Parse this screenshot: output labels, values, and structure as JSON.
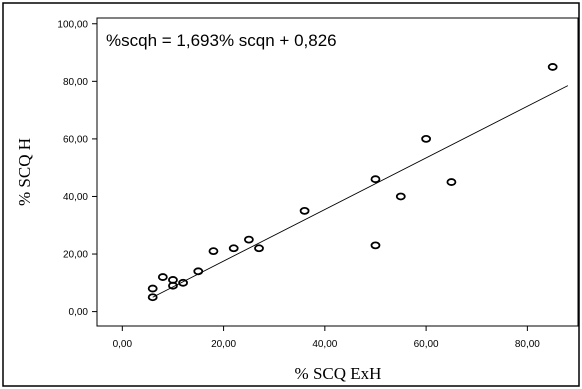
{
  "chart_data": {
    "type": "scatter",
    "title": "",
    "xlabel": "% SCQ ExH",
    "ylabel": "% SCQ H",
    "annotation": "%scqh = 1,693% scqn + 0,826",
    "xlim": [
      -5,
      90
    ],
    "ylim": [
      -5,
      102
    ],
    "xticks": [
      0,
      20,
      40,
      60,
      80
    ],
    "xtick_labels": [
      "0,00",
      "20,00",
      "40,00",
      "60,00",
      "80,00"
    ],
    "yticks": [
      0,
      20,
      40,
      60,
      80,
      100
    ],
    "ytick_labels": [
      "0,00",
      "20,00",
      "40,00",
      "60,00",
      "80,00",
      "100,00"
    ],
    "grid": false,
    "legend": false,
    "points": [
      {
        "x": 6,
        "y": 5
      },
      {
        "x": 6,
        "y": 8
      },
      {
        "x": 8,
        "y": 12
      },
      {
        "x": 10,
        "y": 9
      },
      {
        "x": 10,
        "y": 11
      },
      {
        "x": 12,
        "y": 10
      },
      {
        "x": 15,
        "y": 14
      },
      {
        "x": 18,
        "y": 21
      },
      {
        "x": 22,
        "y": 22
      },
      {
        "x": 25,
        "y": 25
      },
      {
        "x": 27,
        "y": 22
      },
      {
        "x": 36,
        "y": 35
      },
      {
        "x": 50,
        "y": 46
      },
      {
        "x": 50,
        "y": 23
      },
      {
        "x": 55,
        "y": 40
      },
      {
        "x": 60,
        "y": 60
      },
      {
        "x": 65,
        "y": 45
      },
      {
        "x": 85,
        "y": 85
      }
    ],
    "fit_line": {
      "x": [
        6,
        88
      ],
      "y": [
        5,
        78.5
      ]
    }
  }
}
